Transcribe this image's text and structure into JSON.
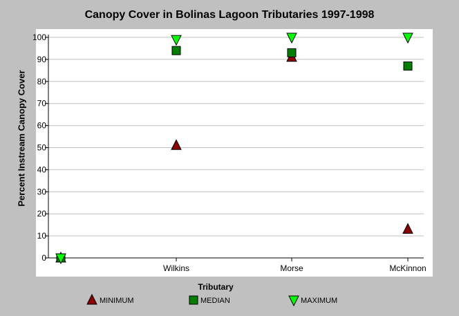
{
  "chart_data": {
    "type": "scatter",
    "title": "Canopy Cover in Bolinas Lagoon Tributaries 1997-1998",
    "xlabel": "Tributary",
    "ylabel": "Percent Instream Canopy Cover",
    "categories": [
      "",
      "Wilkins",
      "Morse",
      "McKinnon"
    ],
    "ylim": [
      0,
      100
    ],
    "yticks": [
      0,
      10,
      20,
      30,
      40,
      50,
      60,
      70,
      80,
      90,
      100
    ],
    "grid": true,
    "legend_position": "bottom",
    "series": [
      {
        "name": "MINIMUM",
        "marker": "triangle-up",
        "color": "#8b0000",
        "values": [
          0,
          51,
          91,
          13
        ]
      },
      {
        "name": "MEDIAN",
        "marker": "square",
        "color": "#007f00",
        "values": [
          0,
          94,
          93,
          87
        ]
      },
      {
        "name": "MAXIMUM",
        "marker": "triangle-down",
        "color": "#00ff00",
        "values": [
          0,
          99,
          100,
          100
        ]
      }
    ]
  }
}
